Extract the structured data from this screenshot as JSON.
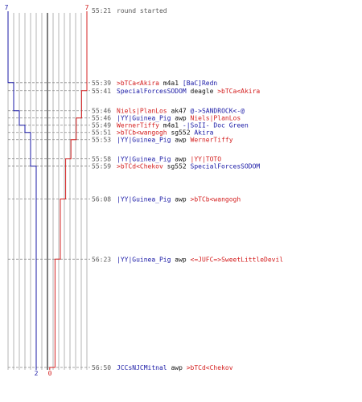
{
  "header": {
    "blue_count": "7",
    "red_count": "7"
  },
  "footer": {
    "blue_count": "2",
    "red_count": "0"
  },
  "colors": {
    "blue": "#1a1aa6",
    "red": "#d42020",
    "grid": "#b5b5b5",
    "center": "#555555",
    "time": "#5a5a5a",
    "dash": "#8a8a8a"
  },
  "events": [
    {
      "time": "55:21",
      "parts": [
        {
          "t": "round started",
          "c": "gray"
        }
      ]
    },
    {
      "time": "55:39",
      "parts": [
        {
          "t": ">bTCa<Akira",
          "c": "red"
        },
        {
          "t": " m4a1 ",
          "c": "black"
        },
        {
          "t": "[BaC]Redn",
          "c": "blue"
        }
      ]
    },
    {
      "time": "55:41",
      "parts": [
        {
          "t": "SpecialForcesSODOM",
          "c": "blue"
        },
        {
          "t": " deagle ",
          "c": "black"
        },
        {
          "t": ">bTCa<Akira",
          "c": "red"
        }
      ]
    },
    {
      "time": "55:46",
      "parts": [
        {
          "t": "Niels|PlanLos",
          "c": "red"
        },
        {
          "t": " ak47 ",
          "c": "black"
        },
        {
          "t": "@->SANDROCK<-@",
          "c": "blue"
        }
      ]
    },
    {
      "time": "55:46",
      "parts": [
        {
          "t": "|YY|Guinea_Pig",
          "c": "blue"
        },
        {
          "t": " awp ",
          "c": "black"
        },
        {
          "t": "Niels|PlanLos",
          "c": "red"
        }
      ]
    },
    {
      "time": "55:49",
      "parts": [
        {
          "t": "WernerTiffy",
          "c": "red"
        },
        {
          "t": " m4a1 ",
          "c": "black"
        },
        {
          "t": "-|SoII- Doc Green",
          "c": "blue"
        }
      ]
    },
    {
      "time": "55:51",
      "parts": [
        {
          "t": ">bTCb<wangogh",
          "c": "red"
        },
        {
          "t": " sg552 ",
          "c": "black"
        },
        {
          "t": "Akira",
          "c": "blue"
        }
      ]
    },
    {
      "time": "55:53",
      "parts": [
        {
          "t": "|YY|Guinea_Pig",
          "c": "blue"
        },
        {
          "t": " awp ",
          "c": "black"
        },
        {
          "t": "WernerTiffy",
          "c": "red"
        }
      ]
    },
    {
      "time": "55:58",
      "parts": [
        {
          "t": "|YY|Guinea_Pig",
          "c": "blue"
        },
        {
          "t": " awp ",
          "c": "black"
        },
        {
          "t": "|YY|TOTO",
          "c": "red"
        }
      ]
    },
    {
      "time": "55:59",
      "parts": [
        {
          "t": ">bTCd<Chekov",
          "c": "red"
        },
        {
          "t": " sg552 ",
          "c": "black"
        },
        {
          "t": "SpecialForcesSODOM",
          "c": "blue"
        }
      ]
    },
    {
      "time": "56:08",
      "parts": [
        {
          "t": "|YY|Guinea_Pig",
          "c": "blue"
        },
        {
          "t": " awp ",
          "c": "black"
        },
        {
          "t": ">bTCb<wangogh",
          "c": "red"
        }
      ]
    },
    {
      "time": "56:23",
      "parts": [
        {
          "t": "|YY|Guinea_Pig",
          "c": "blue"
        },
        {
          "t": " awp ",
          "c": "black"
        },
        {
          "t": "<=JUFC=>SweetLittleDevil",
          "c": "red"
        }
      ]
    },
    {
      "time": "56:50",
      "parts": [
        {
          "t": "JCCsNJCMitnal",
          "c": "blue"
        },
        {
          "t": " awp ",
          "c": "black"
        },
        {
          "t": ">bTCd<Chekov",
          "c": "red"
        }
      ]
    }
  ]
}
